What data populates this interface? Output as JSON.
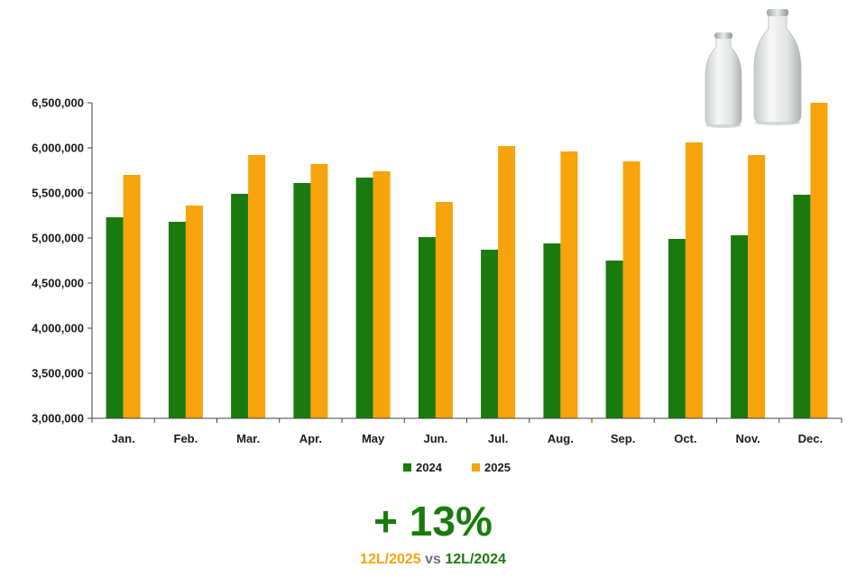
{
  "colors": {
    "series_2024": "#1a7a0e",
    "series_2025": "#f7a30c",
    "axis": "#404040",
    "summary_green": "#1a7a0e",
    "summary_orange": "#f7a30c",
    "summary_gray": "#707070"
  },
  "chart_data": {
    "type": "bar",
    "categories": [
      "Jan.",
      "Feb.",
      "Mar.",
      "Apr.",
      "May",
      "Jun.",
      "Jul.",
      "Aug.",
      "Sep.",
      "Oct.",
      "Nov.",
      "Dec."
    ],
    "series": [
      {
        "name": "2024",
        "values": [
          5230000,
          5180000,
          5490000,
          5610000,
          5670000,
          5010000,
          4870000,
          4940000,
          4750000,
          4990000,
          5030000,
          5480000
        ]
      },
      {
        "name": "2025",
        "values": [
          5700000,
          5360000,
          5920000,
          5820000,
          5740000,
          5400000,
          6020000,
          5960000,
          5850000,
          6060000,
          5920000,
          6500000
        ]
      }
    ],
    "ylim": [
      3000000,
      6500000
    ],
    "yticks": [
      "3,000,000",
      "3,500,000",
      "4,000,000",
      "4,500,000",
      "5,000,000",
      "5,500,000",
      "6,000,000",
      "6,500,000"
    ],
    "ytick_values": [
      3000000,
      3500000,
      4000000,
      4500000,
      5000000,
      5500000,
      6000000,
      6500000
    ],
    "legend": [
      "2024",
      "2025"
    ],
    "legend_position": "bottom",
    "grid": false
  },
  "decoration": {
    "image": "milk-bottles"
  },
  "summary": {
    "headline": "+ 13%",
    "left_label": "12L/2025",
    "connector": " vs ",
    "right_label": "12L/2024"
  }
}
